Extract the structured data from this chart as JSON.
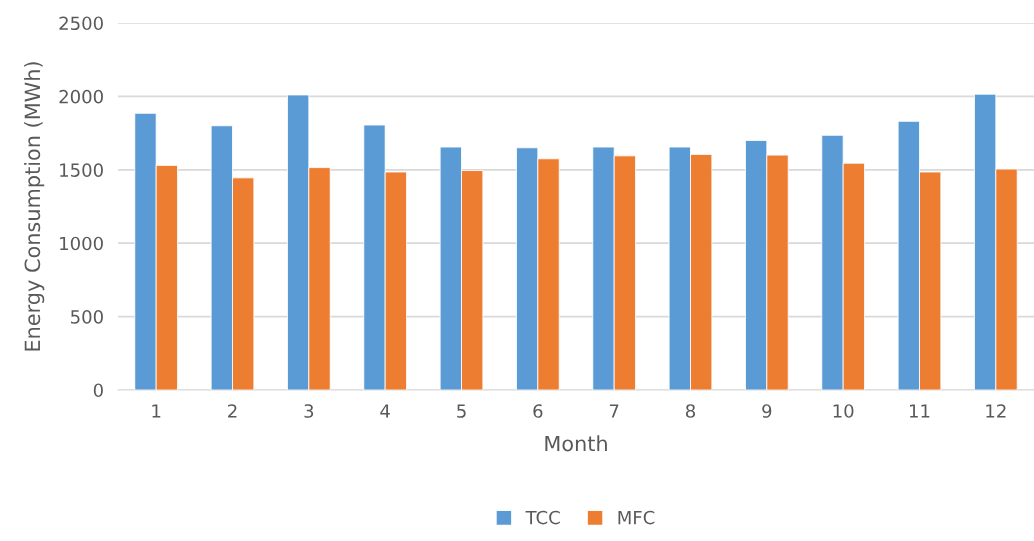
{
  "chart_data": {
    "type": "bar",
    "xlabel": "Month",
    "ylabel": "Energy Consumption (MWh)",
    "categories": [
      "1",
      "2",
      "3",
      "4",
      "5",
      "6",
      "7",
      "8",
      "9",
      "10",
      "11",
      "12"
    ],
    "series": [
      {
        "name": "TCC",
        "color": "#5b9bd5",
        "values": [
          1885,
          1800,
          2010,
          1805,
          1655,
          1650,
          1655,
          1655,
          1700,
          1735,
          1830,
          2015
        ]
      },
      {
        "name": "MFC",
        "color": "#ed7d31",
        "values": [
          1530,
          1445,
          1515,
          1485,
          1495,
          1575,
          1595,
          1605,
          1600,
          1545,
          1485,
          1505
        ]
      }
    ],
    "ylim": [
      0,
      2500
    ],
    "yticks": [
      0,
      500,
      1000,
      1500,
      2000,
      2500
    ],
    "grid": "y",
    "legend": "bottom"
  }
}
